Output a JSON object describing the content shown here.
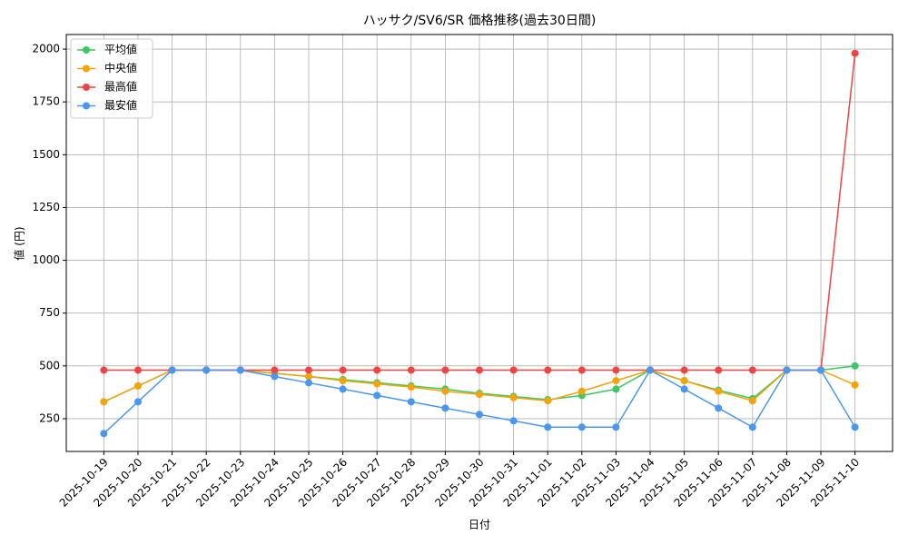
{
  "chart_data": {
    "type": "line",
    "title": "ハッサク/SV6/SR 価格推移(過去30日間)",
    "x_label": "日付",
    "y_label": "値 (円)",
    "categories": [
      "2025-10-19",
      "2025-10-20",
      "2025-10-21",
      "2025-10-22",
      "2025-10-23",
      "2025-10-24",
      "2025-10-25",
      "2025-10-26",
      "2025-10-27",
      "2025-10-28",
      "2025-10-29",
      "2025-10-30",
      "2025-10-31",
      "2025-11-01",
      "2025-11-02",
      "2025-11-03",
      "2025-11-04",
      "2025-11-05",
      "2025-11-06",
      "2025-11-07",
      "2025-11-08",
      "2025-11-09",
      "2025-11-10"
    ],
    "series": [
      {
        "name": "平均値",
        "color": "#3cc864",
        "values": [
          330,
          405,
          480,
          480,
          480,
          465,
          450,
          435,
          420,
          405,
          390,
          370,
          355,
          340,
          360,
          390,
          480,
          430,
          385,
          345,
          480,
          480,
          500
        ]
      },
      {
        "name": "中央値",
        "color": "#f5a30a",
        "values": [
          330,
          405,
          480,
          480,
          480,
          465,
          450,
          430,
          415,
          400,
          380,
          365,
          350,
          335,
          380,
          430,
          480,
          430,
          380,
          335,
          480,
          480,
          410
        ]
      },
      {
        "name": "最高値",
        "color": "#ef4444",
        "values": [
          480,
          480,
          480,
          480,
          480,
          480,
          480,
          480,
          480,
          480,
          480,
          480,
          480,
          480,
          480,
          480,
          480,
          480,
          480,
          480,
          480,
          480,
          1980
        ]
      },
      {
        "name": "最安値",
        "color": "#4a97ef",
        "values": [
          180,
          330,
          480,
          480,
          480,
          450,
          420,
          390,
          360,
          330,
          300,
          270,
          240,
          210,
          210,
          210,
          480,
          390,
          300,
          210,
          480,
          480,
          210
        ]
      }
    ],
    "ylim": [
      95,
      2069
    ],
    "yticks": [
      250,
      500,
      750,
      1000,
      1250,
      1500,
      1750,
      2000
    ],
    "grid": true,
    "legend": "upper-left"
  }
}
